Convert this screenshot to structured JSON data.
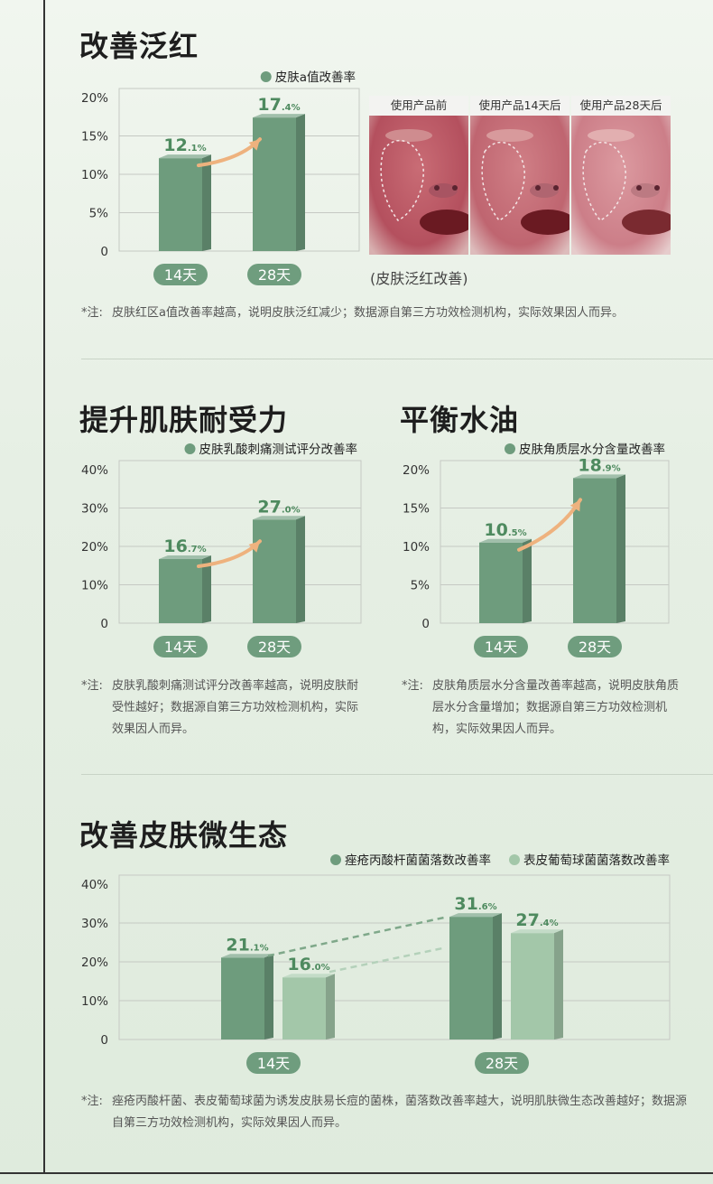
{
  "sections": {
    "redness": {
      "title": "改善泛红",
      "note_star": "*注:",
      "note": "皮肤红区a值改善率越高，说明皮肤泛红减少；数据源自第三方功效检测机构，实际效果因人而异。",
      "photo_labels": [
        "使用产品前",
        "使用产品14天后",
        "使用产品28天后"
      ],
      "photo_caption": "(皮肤泛红改善)"
    },
    "tolerance": {
      "title": "提升肌肤耐受力",
      "note_star": "*注:",
      "note": "皮肤乳酸刺痛测试评分改善率越高，说明皮肤耐受性越好；数据源自第三方功效检测机构，实际效果因人而异。"
    },
    "balance": {
      "title": "平衡水油",
      "note_star": "*注:",
      "note": "皮肤角质层水分含量改善率越高，说明皮肤角质层水分含量增加；数据源自第三方功效检测机构，实际效果因人而异。"
    },
    "microbiome": {
      "title": "改善皮肤微生态",
      "note_star": "*注:",
      "note": "痤疮丙酸杆菌、表皮葡萄球菌为诱发皮肤易长痘的菌株，菌落数改善率越大，说明肌肤微生态改善越好；数据源自第三方功效检测机构，实际效果因人而异。"
    }
  },
  "chart_data": [
    {
      "type": "bar",
      "categories": [
        "14天",
        "28天"
      ],
      "series": [
        {
          "name": "皮肤a值改善率",
          "values": [
            12.1,
            17.4
          ]
        }
      ],
      "value_labels": [
        [
          "12.1%",
          "17.4%"
        ]
      ],
      "yticks": [
        "20%",
        "15%",
        "10%",
        "5%",
        "0"
      ],
      "ylim": [
        0,
        20
      ],
      "grid": true,
      "legend": "top-right"
    },
    {
      "type": "bar",
      "categories": [
        "14天",
        "28天"
      ],
      "series": [
        {
          "name": "皮肤乳酸刺痛测试评分改善率",
          "values": [
            16.7,
            27.0
          ]
        }
      ],
      "value_labels": [
        [
          "16.7%",
          "27.0%"
        ]
      ],
      "yticks": [
        "40%",
        "30%",
        "20%",
        "10%",
        "0"
      ],
      "ylim": [
        0,
        40
      ],
      "grid": true,
      "legend": "top-right"
    },
    {
      "type": "bar",
      "categories": [
        "14天",
        "28天"
      ],
      "series": [
        {
          "name": "皮肤角质层水分含量改善率",
          "values": [
            10.5,
            18.9
          ]
        }
      ],
      "value_labels": [
        [
          "10.5%",
          "18.9%"
        ]
      ],
      "yticks": [
        "20%",
        "15%",
        "10%",
        "5%",
        "0"
      ],
      "ylim": [
        0,
        20
      ],
      "grid": true,
      "legend": "top-right"
    },
    {
      "type": "bar",
      "categories": [
        "14天",
        "28天"
      ],
      "series": [
        {
          "name": "痤疮丙酸杆菌菌落数改善率",
          "values": [
            21.1,
            31.6
          ]
        },
        {
          "name": "表皮葡萄球菌菌落数改善率",
          "values": [
            16.0,
            27.4
          ]
        }
      ],
      "value_labels": [
        [
          "21.1%",
          "31.6%"
        ],
        [
          "16.0%",
          "27.4%"
        ]
      ],
      "yticks": [
        "40%",
        "30%",
        "20%",
        "10%",
        "0"
      ],
      "ylim": [
        0,
        40
      ],
      "grid": true,
      "legend": "top-right"
    }
  ],
  "colors": {
    "bar_dark": "#6e9c7d",
    "bar_light": "#a3c7a9",
    "pill": "#6f9d7e",
    "arrow": "#eeb27e",
    "grid": "#c5c9c3",
    "label": "#4e8a5f"
  }
}
